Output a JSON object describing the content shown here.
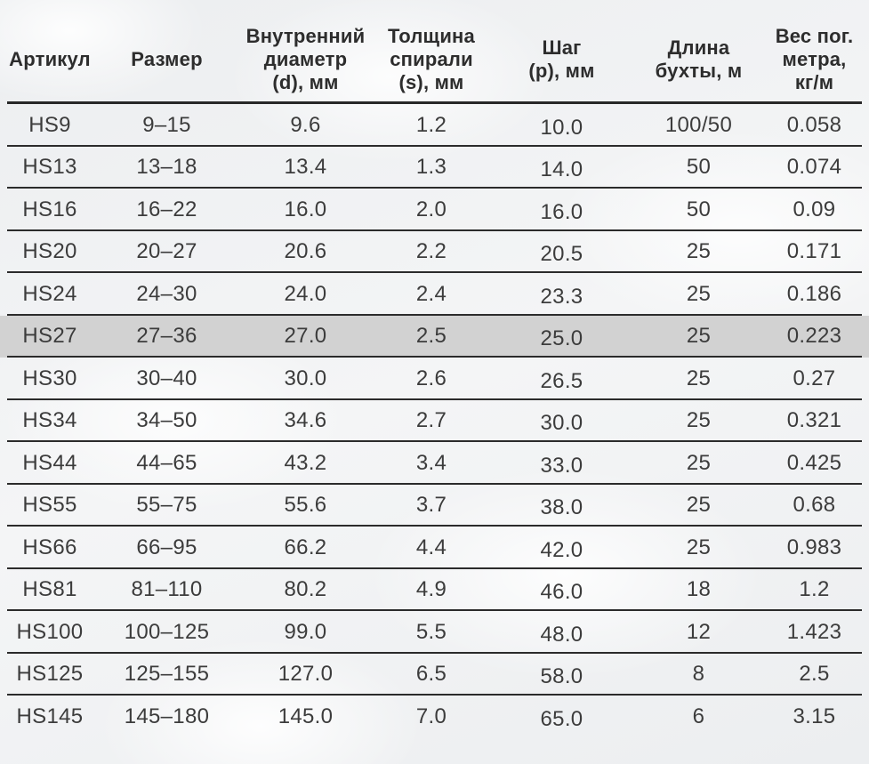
{
  "table": {
    "column_keys": [
      "article",
      "size",
      "inner-diameter",
      "spiral-thickness",
      "pitch",
      "coil-length",
      "weight-per-meter"
    ],
    "headers": [
      "Артикул",
      "Размер",
      "Внутренний\nдиаметр\n(d), мм",
      "Толщина\nспирали\n(s), мм",
      "Шаг\n(p), мм",
      "Длина\nбухты, м",
      "Вес пог.\nметра,\nкг/м"
    ],
    "rows": [
      [
        "HS9",
        "9–15",
        "9.6",
        "1.2",
        "10.0",
        "100/50",
        "0.058"
      ],
      [
        "HS13",
        "13–18",
        "13.4",
        "1.3",
        "14.0",
        "50",
        "0.074"
      ],
      [
        "HS16",
        "16–22",
        "16.0",
        "2.0",
        "16.0",
        "50",
        "0.09"
      ],
      [
        "HS20",
        "20–27",
        "20.6",
        "2.2",
        "20.5",
        "25",
        "0.171"
      ],
      [
        "HS24",
        "24–30",
        "24.0",
        "2.4",
        "23.3",
        "25",
        "0.186"
      ],
      [
        "HS27",
        "27–36",
        "27.0",
        "2.5",
        "25.0",
        "25",
        "0.223"
      ],
      [
        "HS30",
        "30–40",
        "30.0",
        "2.6",
        "26.5",
        "25",
        "0.27"
      ],
      [
        "HS34",
        "34–50",
        "34.6",
        "2.7",
        "30.0",
        "25",
        "0.321"
      ],
      [
        "HS44",
        "44–65",
        "43.2",
        "3.4",
        "33.0",
        "25",
        "0.425"
      ],
      [
        "HS55",
        "55–75",
        "55.6",
        "3.7",
        "38.0",
        "25",
        "0.68"
      ],
      [
        "HS66",
        "66–95",
        "66.2",
        "4.4",
        "42.0",
        "25",
        "0.983"
      ],
      [
        "HS81",
        "81–110",
        "80.2",
        "4.9",
        "46.0",
        "18",
        "1.2"
      ],
      [
        "HS100",
        "100–125",
        "99.0",
        "5.5",
        "48.0",
        "12",
        "1.423"
      ],
      [
        "HS125",
        "125–155",
        "127.0",
        "6.5",
        "58.0",
        "8",
        "2.5"
      ],
      [
        "HS145",
        "145–180",
        "145.0",
        "7.0",
        "65.0",
        "6",
        "3.15"
      ]
    ],
    "highlighted_row": "HS27",
    "colors": {
      "line": "#2b2b2b",
      "text": "#3c3c3c",
      "highlight_bg": "#d2d2d2"
    }
  }
}
